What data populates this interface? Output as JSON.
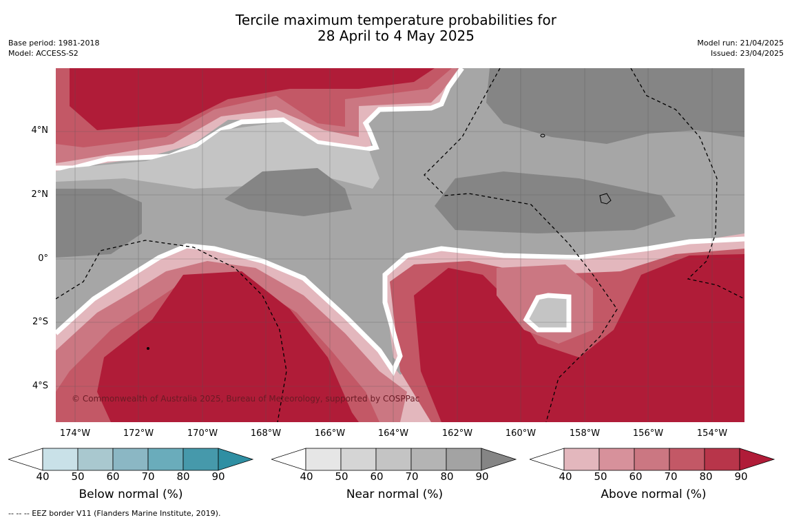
{
  "title": {
    "line1": "Tercile maximum temperature probabilities for",
    "line2": "28 April to 4 May 2025"
  },
  "meta_left": {
    "base_period": "Base period: 1981-2018",
    "model": "Model: ACCESS-S2"
  },
  "meta_right": {
    "model_run": "Model run: 21/04/2025",
    "issued": "Issued: 23/04/2025"
  },
  "map": {
    "lat_labels": [
      "4°N",
      "2°N",
      "0°",
      "2°S",
      "4°S"
    ],
    "lon_labels": [
      "174°W",
      "172°W",
      "170°W",
      "168°W",
      "166°W",
      "164°W",
      "162°W",
      "160°W",
      "158°W",
      "156°W",
      "154°W"
    ],
    "copyright": "© Commonwealth of Australia 2025, Bureau of Meteorology, supported by COSPPac"
  },
  "colorbars": [
    {
      "title": "Below normal (%)",
      "ticks": [
        "40",
        "50",
        "60",
        "70",
        "80",
        "90"
      ],
      "colors": [
        "#ffffff",
        "#c9e1e8",
        "#a9c8cf",
        "#8bb7c4",
        "#6aacbb",
        "#4699ab",
        "#2f8fa3"
      ]
    },
    {
      "title": "Near normal (%)",
      "ticks": [
        "40",
        "50",
        "60",
        "70",
        "80",
        "90"
      ],
      "colors": [
        "#ffffff",
        "#e6e6e6",
        "#d5d5d5",
        "#c4c4c4",
        "#b4b4b4",
        "#a3a3a3",
        "#858585"
      ]
    },
    {
      "title": "Above normal (%)",
      "ticks": [
        "40",
        "50",
        "60",
        "70",
        "80",
        "90"
      ],
      "colors": [
        "#ffffff",
        "#e3b7bd",
        "#d7919b",
        "#cb7782",
        "#c35866",
        "#b8354a",
        "#b01c38"
      ]
    }
  ],
  "footnote": "--  --  -- EEZ border V11 (Flanders Marine Institute, 2019)."
}
